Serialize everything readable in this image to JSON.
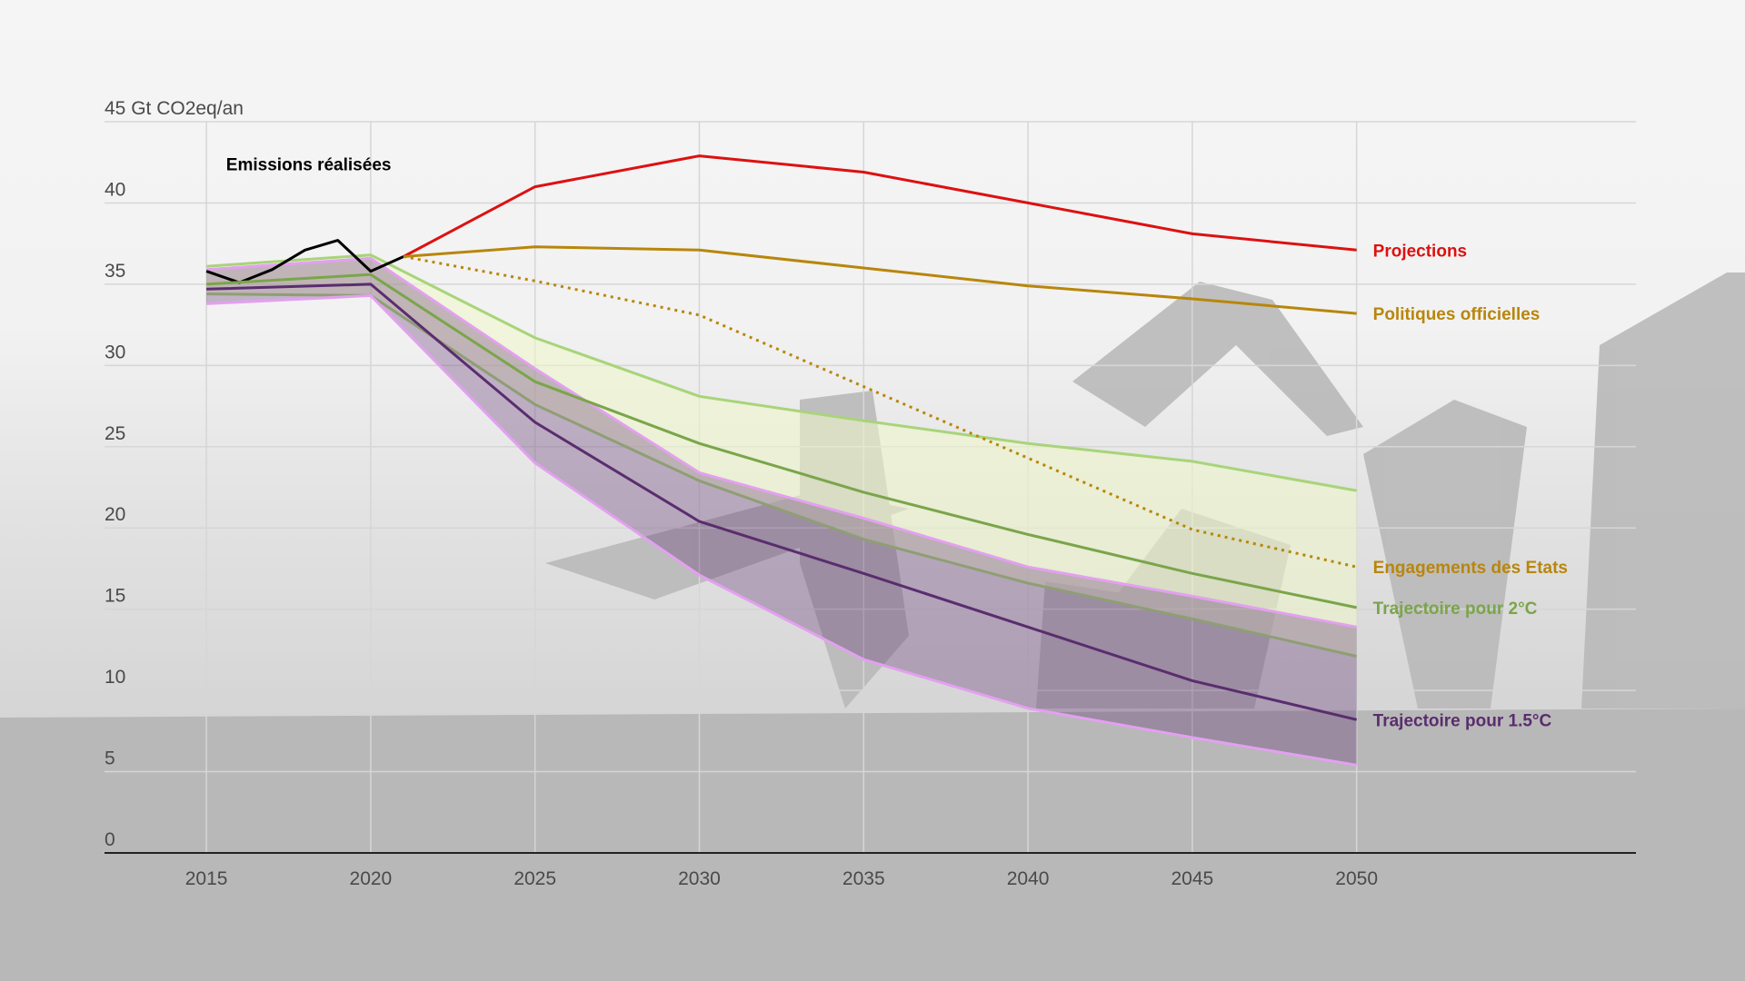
{
  "chart_data": {
    "type": "line",
    "x_axis": {
      "ticks": [
        2015,
        2020,
        2025,
        2030,
        2035,
        2040,
        2045,
        2050
      ],
      "range": [
        2011.9,
        2058.5
      ]
    },
    "y_axis": {
      "ticks": [
        0,
        5,
        10,
        15,
        20,
        25,
        30,
        35,
        40,
        45
      ],
      "tick_labels": [
        "0",
        "5",
        "10",
        "15",
        "20",
        "25",
        "30",
        "35",
        "40",
        "45 Gt CO2eq/an"
      ],
      "range": [
        0,
        45
      ]
    },
    "grid": true,
    "annotation": {
      "text": "Emissions réalisées",
      "year": 2015.6,
      "value": 42
    },
    "series": [
      {
        "key": "realisees",
        "color": "#000000",
        "x": [
          2015,
          2016,
          2017,
          2018,
          2019,
          2020,
          2021
        ],
        "values": [
          35.8,
          35.1,
          35.9,
          37.1,
          37.7,
          35.8,
          36.7
        ]
      },
      {
        "key": "projections",
        "name": "Projections",
        "color": "#dd1111",
        "x": [
          2021,
          2025,
          2030,
          2035,
          2040,
          2045,
          2050
        ],
        "values": [
          36.7,
          41,
          42.9,
          41.9,
          40,
          38.1,
          37.1
        ]
      },
      {
        "key": "politiques",
        "name": "Politiques officielles",
        "color": "#b8860b",
        "x": [
          2021,
          2025,
          2030,
          2035,
          2040,
          2045,
          2050
        ],
        "values": [
          36.7,
          37.3,
          37.1,
          36,
          34.9,
          34.1,
          33.2
        ]
      },
      {
        "key": "engagements",
        "name": "Engagements des Etats",
        "color": "#b8860b",
        "dashed": true,
        "x": [
          2021,
          2025,
          2030,
          2035,
          2040,
          2045,
          2050
        ],
        "values": [
          36.7,
          35.2,
          33.1,
          28.7,
          24.3,
          19.9,
          17.6
        ]
      },
      {
        "key": "deuxdegres",
        "name": "Trajectoire pour 2°C",
        "color": "#7aa54a",
        "x": [
          2015,
          2020,
          2025,
          2030,
          2035,
          2040,
          2045,
          2050
        ],
        "values": [
          35,
          35.6,
          29,
          25.2,
          22.2,
          19.6,
          17.2,
          15.1
        ],
        "band_color": "#eef8c8",
        "band_edge_color": "#a8d47a",
        "band_upper": [
          36.1,
          36.8,
          31.7,
          28.1,
          26.6,
          25.2,
          24.1,
          22.3
        ],
        "band_lower": [
          34.4,
          34.3,
          27.6,
          22.9,
          19.3,
          16.6,
          14.4,
          12.1
        ]
      },
      {
        "key": "unvirgulecinq",
        "name": "Trajectoire pour 1.5°C",
        "color": "#5a2d6e",
        "x": [
          2015,
          2020,
          2025,
          2030,
          2035,
          2040,
          2045,
          2050
        ],
        "values": [
          34.7,
          35,
          26.5,
          20.4,
          17.2,
          13.9,
          10.6,
          8.2
        ],
        "band_color": "#5a2d6e",
        "band_edge_color": "#e3a0f0",
        "band_upper": [
          35.9,
          36.6,
          29.8,
          23.4,
          20.6,
          17.6,
          15.8,
          13.9
        ],
        "band_lower": [
          33.8,
          34.3,
          24,
          17.1,
          11.9,
          8.9,
          7.1,
          5.4
        ]
      }
    ]
  }
}
